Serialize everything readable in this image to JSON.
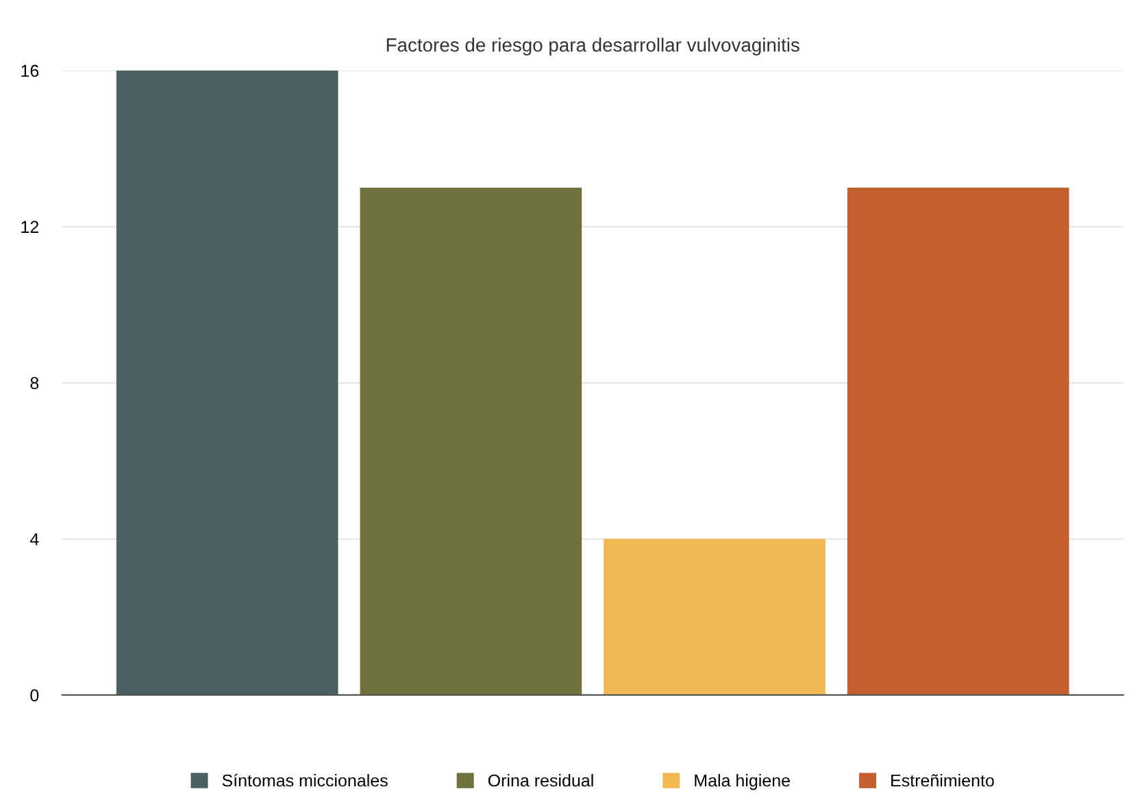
{
  "chart_data": {
    "type": "bar",
    "title": "Factores de riesgo para desarrollar vulvovaginitis",
    "categories": [
      null
    ],
    "series": [
      {
        "name": "Síntomas miccionales",
        "color": "#4a6063",
        "values": [
          16
        ]
      },
      {
        "name": "Orina residual",
        "color": "#6f723d",
        "values": [
          13
        ]
      },
      {
        "name": "Mala higiene",
        "color": "#f1b952",
        "values": [
          4
        ]
      },
      {
        "name": "Estreñimiento",
        "color": "#c45f2f",
        "values": [
          13
        ]
      }
    ],
    "ylim": [
      0,
      16
    ],
    "yticks": [
      0,
      4,
      8,
      12,
      16
    ],
    "grid": "y",
    "legend": "bottom"
  }
}
